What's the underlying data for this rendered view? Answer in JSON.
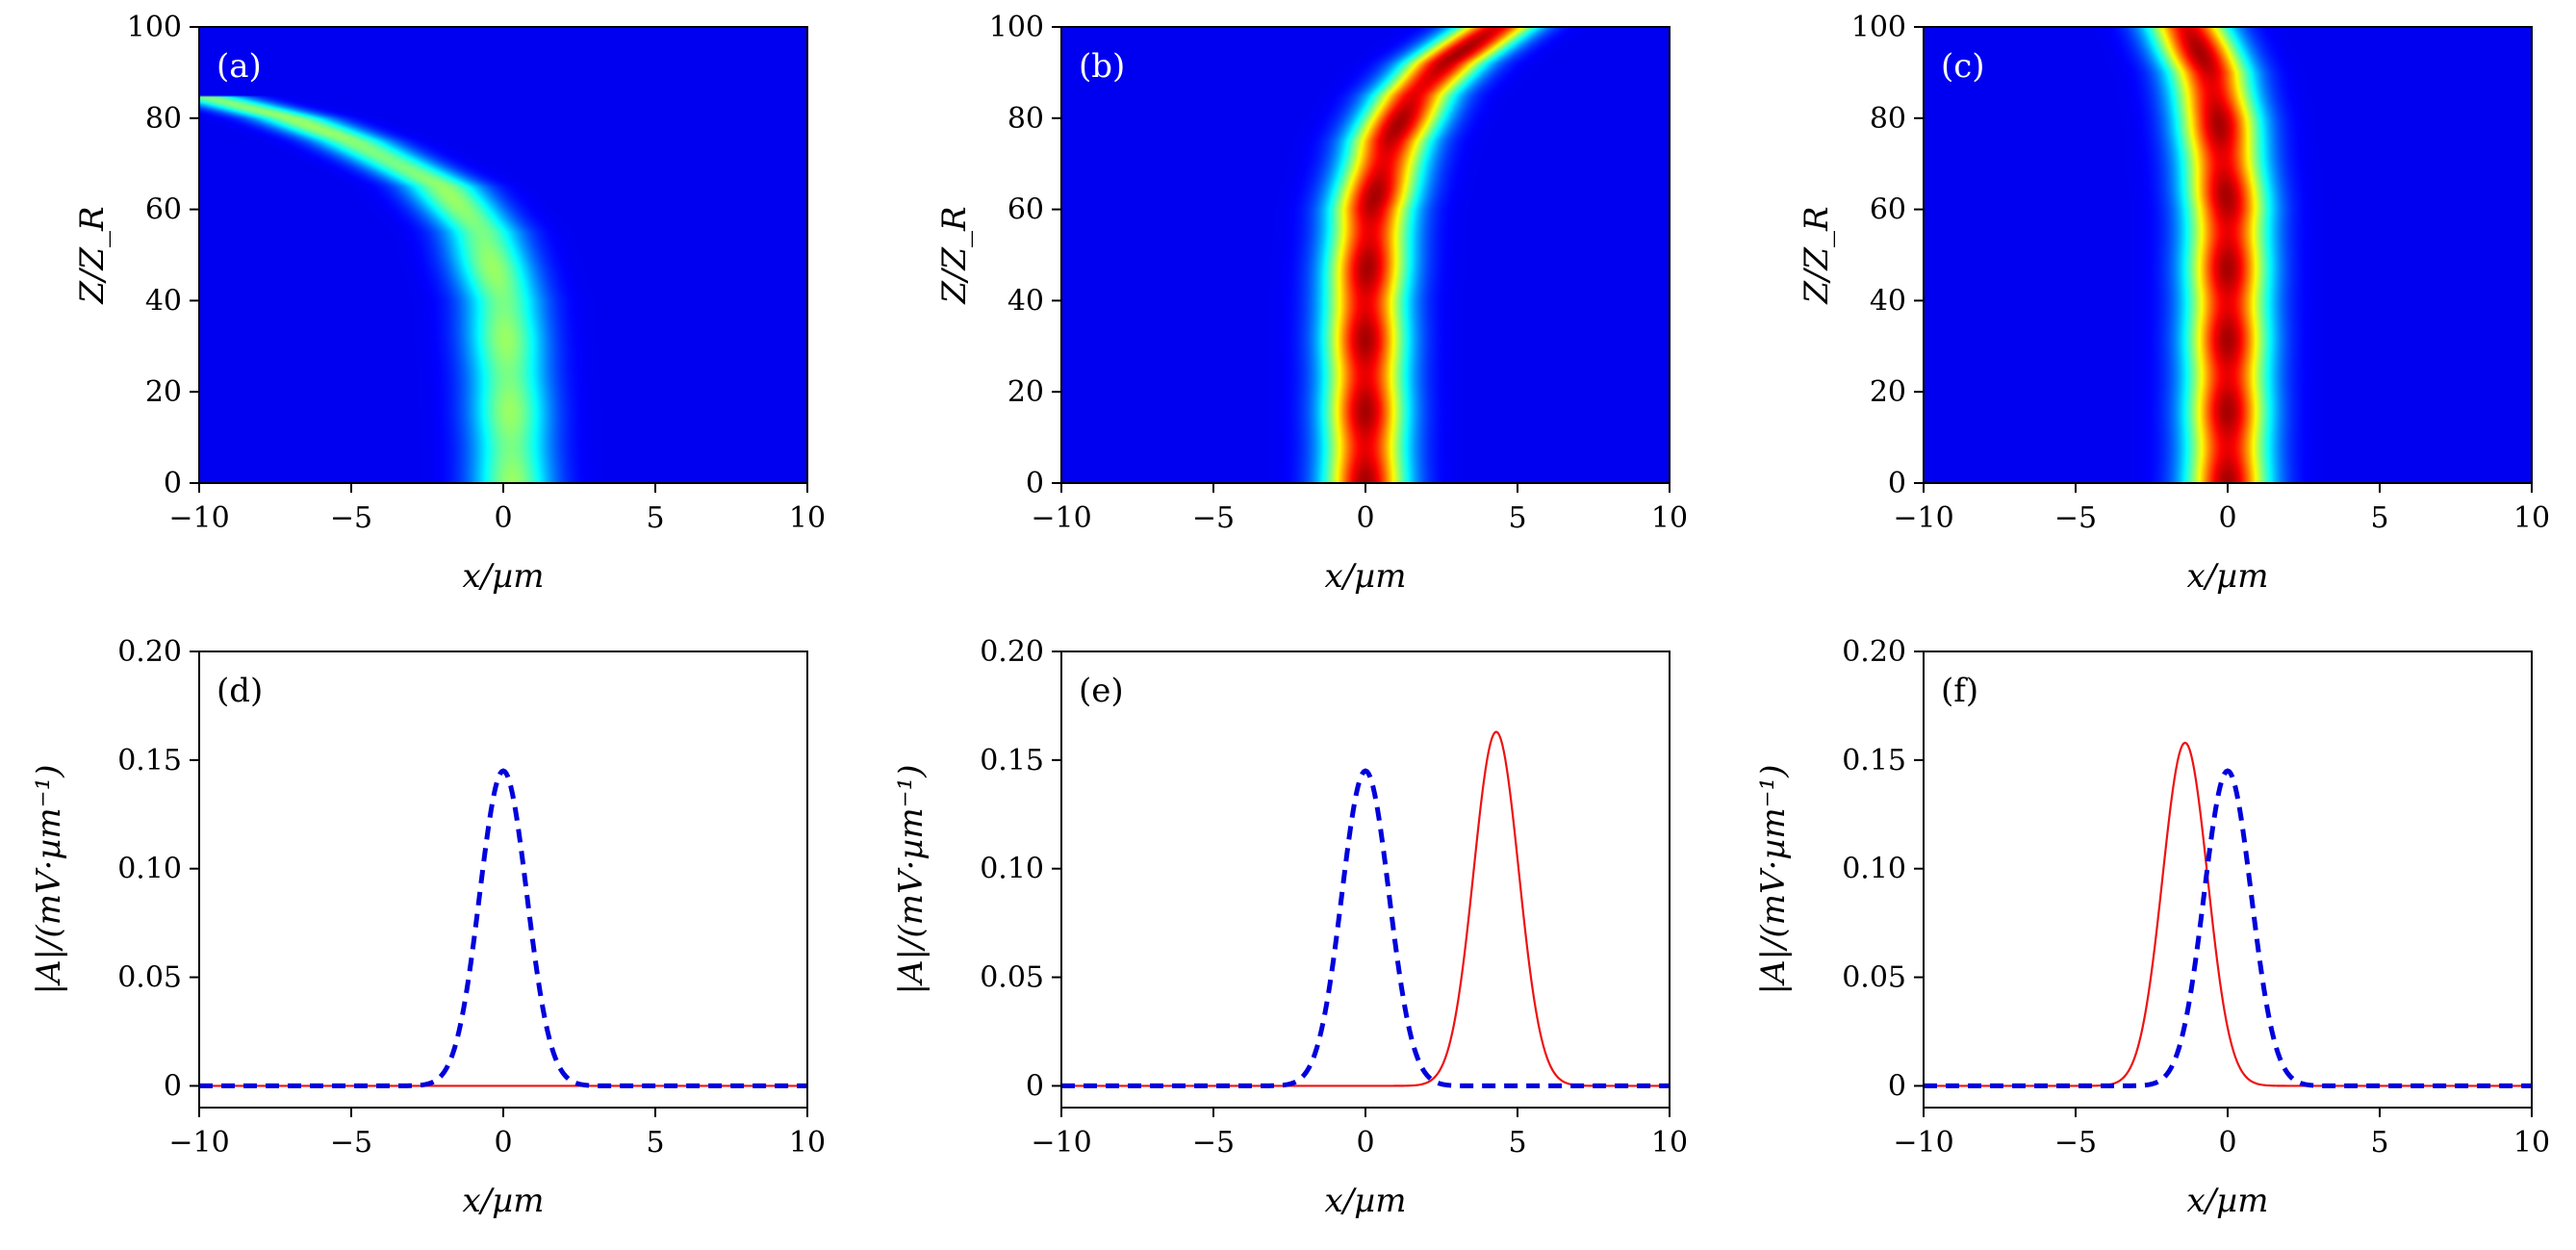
{
  "chart_data": [
    {
      "id": "a",
      "type": "heatmap",
      "panel_label": "(a)",
      "xlabel": "x/µm",
      "ylabel": "Z/Z_R",
      "xlim": [
        -10,
        10
      ],
      "ylim": [
        0,
        100
      ],
      "xticks": [
        "−10",
        "−5",
        "0",
        "5",
        "10"
      ],
      "yticks": [
        "0",
        "20",
        "40",
        "60",
        "80",
        "100"
      ],
      "colormap": "jet",
      "beam": {
        "width_um": 1.3,
        "peak_level": 0.45,
        "ends_at_z": 85,
        "path_x_at_z": [
          [
            0,
            0.3
          ],
          [
            20,
            0.2
          ],
          [
            40,
            0.0
          ],
          [
            55,
            -0.7
          ],
          [
            65,
            -2.0
          ],
          [
            75,
            -5.0
          ],
          [
            80,
            -7.0
          ],
          [
            85,
            -10.0
          ]
        ]
      }
    },
    {
      "id": "b",
      "type": "heatmap",
      "panel_label": "(b)",
      "xlabel": "x/µm",
      "ylabel": "Z/Z_R",
      "xlim": [
        -10,
        10
      ],
      "ylim": [
        0,
        100
      ],
      "xticks": [
        "−10",
        "−5",
        "0",
        "5",
        "10"
      ],
      "yticks": [
        "0",
        "20",
        "40",
        "60",
        "80",
        "100"
      ],
      "colormap": "jet",
      "beam": {
        "width_um": 1.3,
        "peak_level": 0.92,
        "path_x_at_z": [
          [
            0,
            0.0
          ],
          [
            40,
            0.0
          ],
          [
            60,
            0.2
          ],
          [
            75,
            0.8
          ],
          [
            85,
            1.6
          ],
          [
            92,
            2.6
          ],
          [
            100,
            4.3
          ]
        ]
      }
    },
    {
      "id": "c",
      "type": "heatmap",
      "panel_label": "(c)",
      "xlabel": "x/µm",
      "ylabel": "Z/Z_R",
      "xlim": [
        -10,
        10
      ],
      "ylim": [
        0,
        100
      ],
      "xticks": [
        "−10",
        "−5",
        "0",
        "5",
        "10"
      ],
      "yticks": [
        "0",
        "20",
        "40",
        "60",
        "80",
        "100"
      ],
      "colormap": "jet",
      "beam": {
        "width_um": 1.3,
        "peak_level": 0.92,
        "path_x_at_z": [
          [
            0,
            0.0
          ],
          [
            60,
            0.0
          ],
          [
            80,
            -0.3
          ],
          [
            90,
            -0.6
          ],
          [
            100,
            -1.3
          ]
        ]
      }
    },
    {
      "id": "d",
      "type": "line",
      "panel_label": "(d)",
      "xlabel": "x/µm",
      "ylabel": "|A|/(mV·µm⁻¹)",
      "xlim": [
        -10,
        10
      ],
      "ylim": [
        -0.01,
        0.2
      ],
      "xticks": [
        "−10",
        "−5",
        "0",
        "5",
        "10"
      ],
      "yticks": [
        "0",
        "0.05",
        "0.10",
        "0.15",
        "0.20"
      ],
      "series": [
        {
          "style": "dashed",
          "color": "#0000dd",
          "peak": 0.145,
          "center": 0.0,
          "sigma": 1.1
        },
        {
          "style": "solid",
          "color": "#ee1111",
          "peak": 0.0,
          "center": 0.0,
          "sigma": 1.1
        }
      ]
    },
    {
      "id": "e",
      "type": "line",
      "panel_label": "(e)",
      "xlabel": "x/µm",
      "ylabel": "|A|/(mV·µm⁻¹)",
      "xlim": [
        -10,
        10
      ],
      "ylim": [
        -0.01,
        0.2
      ],
      "xticks": [
        "−10",
        "−5",
        "0",
        "5",
        "10"
      ],
      "yticks": [
        "0",
        "0.05",
        "0.10",
        "0.15",
        "0.20"
      ],
      "series": [
        {
          "style": "dashed",
          "color": "#0000dd",
          "peak": 0.145,
          "center": 0.0,
          "sigma": 1.1
        },
        {
          "style": "solid",
          "color": "#ee1111",
          "peak": 0.163,
          "center": 4.3,
          "sigma": 1.05
        }
      ]
    },
    {
      "id": "f",
      "type": "line",
      "panel_label": "(f)",
      "xlabel": "x/µm",
      "ylabel": "|A|/(mV·µm⁻¹)",
      "xlim": [
        -10,
        10
      ],
      "ylim": [
        -0.01,
        0.2
      ],
      "xticks": [
        "−10",
        "−5",
        "0",
        "5",
        "10"
      ],
      "yticks": [
        "0",
        "0.05",
        "0.10",
        "0.15",
        "0.20"
      ],
      "series": [
        {
          "style": "dashed",
          "color": "#0000dd",
          "peak": 0.145,
          "center": 0.0,
          "sigma": 1.1
        },
        {
          "style": "solid",
          "color": "#ee1111",
          "peak": 0.158,
          "center": -1.4,
          "sigma": 1.05
        }
      ]
    }
  ]
}
